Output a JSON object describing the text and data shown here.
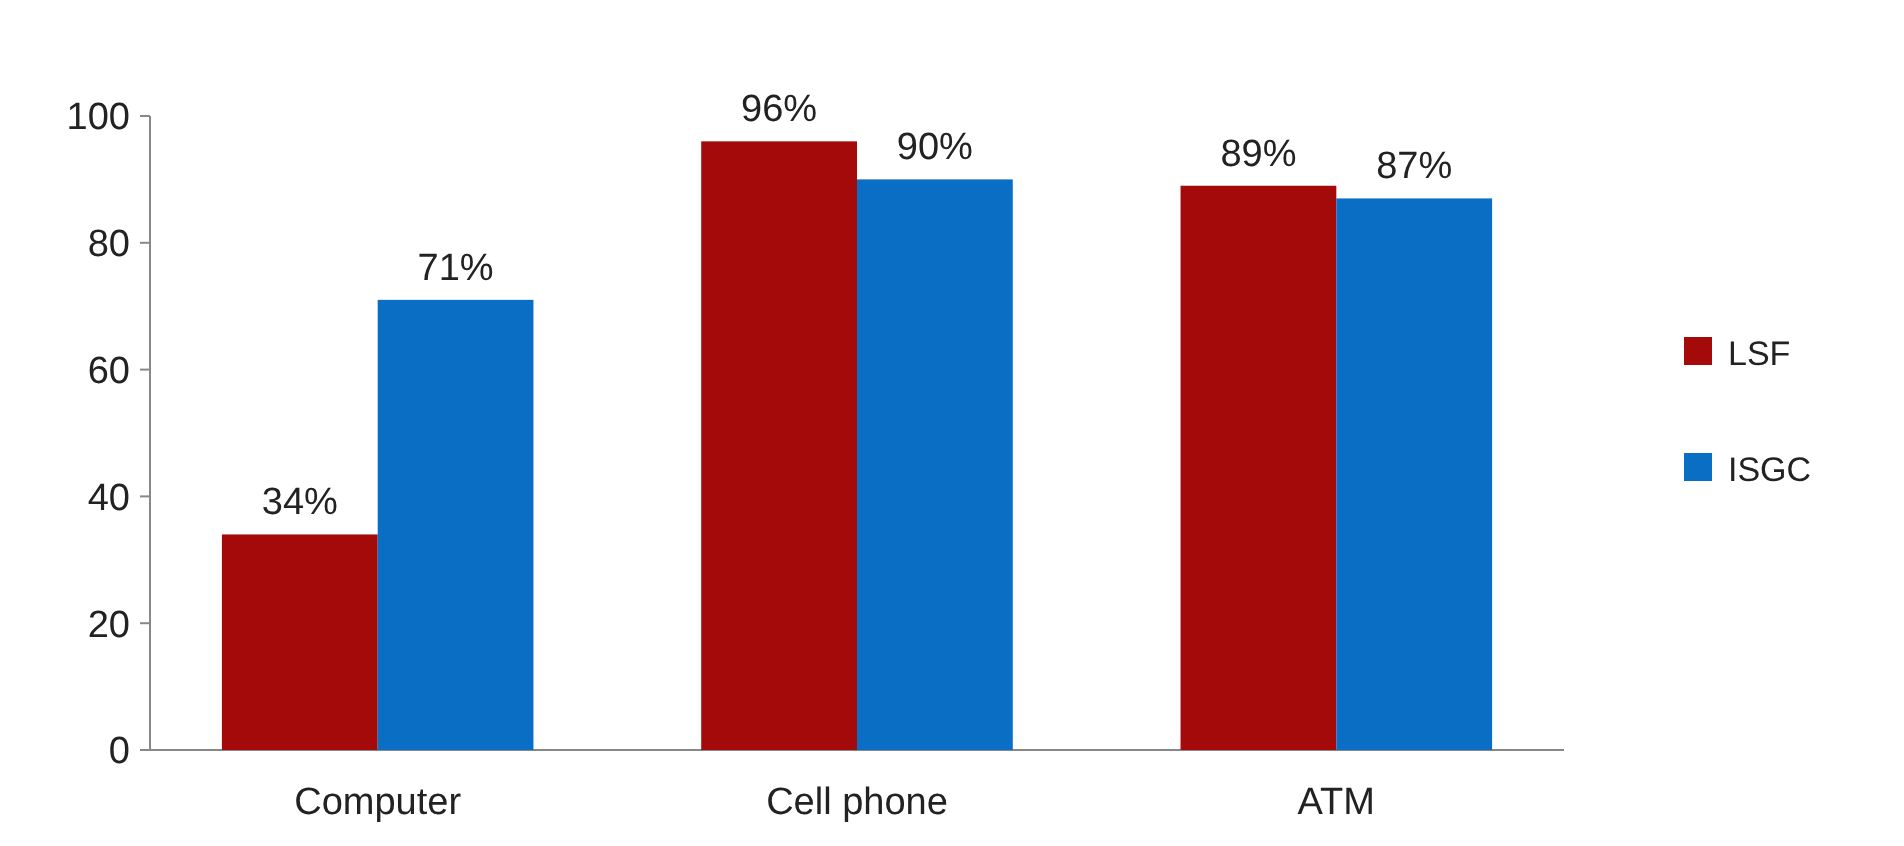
{
  "chart_data": {
    "type": "bar",
    "categories": [
      "Computer",
      "Cell phone",
      "ATM"
    ],
    "series": [
      {
        "name": "LSF",
        "color": "#a50a0a",
        "values": [
          34,
          96,
          89
        ],
        "value_labels": [
          "34%",
          "96%",
          "89%"
        ]
      },
      {
        "name": "ISGC",
        "color": "#0a6ec4",
        "values": [
          71,
          90,
          87
        ],
        "value_labels": [
          "71%",
          "90%",
          "87%"
        ]
      }
    ],
    "ylim": [
      0,
      100
    ],
    "yticks": [
      0,
      20,
      40,
      60,
      80,
      100
    ],
    "legend": "right"
  }
}
